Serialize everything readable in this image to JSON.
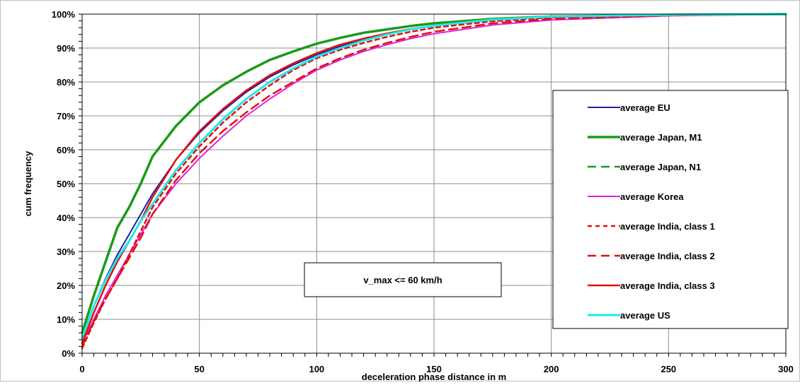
{
  "chart_data": {
    "type": "line",
    "title": "",
    "xlabel": "deceleration phase distance in m",
    "ylabel": "cum frequency",
    "xlim": [
      0,
      300
    ],
    "ylim": [
      0,
      100
    ],
    "x_ticks": [
      0,
      50,
      100,
      150,
      200,
      250,
      300
    ],
    "y_ticks": [
      "0%",
      "10%",
      "20%",
      "30%",
      "40%",
      "50%",
      "60%",
      "70%",
      "80%",
      "90%",
      "100%"
    ],
    "grid": true,
    "legend_position": "right",
    "annotation": "v_max <= 60 km/h",
    "series": [
      {
        "name": "average EU",
        "color": "#1f1fa0",
        "dash": "solid",
        "width": 2,
        "points": [
          [
            0,
            5
          ],
          [
            5,
            14
          ],
          [
            10,
            22
          ],
          [
            15,
            29
          ],
          [
            20,
            35
          ],
          [
            25,
            41
          ],
          [
            30,
            47
          ],
          [
            40,
            57
          ],
          [
            50,
            65
          ],
          [
            60,
            71.5
          ],
          [
            70,
            77
          ],
          [
            80,
            81.5
          ],
          [
            90,
            85
          ],
          [
            100,
            88
          ],
          [
            110,
            90.5
          ],
          [
            120,
            92.5
          ],
          [
            130,
            94
          ],
          [
            140,
            95.5
          ],
          [
            150,
            96.5
          ],
          [
            175,
            98.3
          ],
          [
            200,
            99.2
          ],
          [
            250,
            99.8
          ],
          [
            300,
            100
          ]
        ]
      },
      {
        "name": "average Japan, M1",
        "color": "#1a9a1a",
        "dash": "solid",
        "width": 3.5,
        "points": [
          [
            0,
            6
          ],
          [
            5,
            17
          ],
          [
            10,
            27
          ],
          [
            15,
            37
          ],
          [
            20,
            43
          ],
          [
            25,
            50
          ],
          [
            30,
            58
          ],
          [
            40,
            67
          ],
          [
            50,
            74
          ],
          [
            60,
            79
          ],
          [
            70,
            83
          ],
          [
            80,
            86.5
          ],
          [
            90,
            89
          ],
          [
            100,
            91.3
          ],
          [
            110,
            93
          ],
          [
            120,
            94.5
          ],
          [
            130,
            95.5
          ],
          [
            140,
            96.5
          ],
          [
            150,
            97.3
          ],
          [
            175,
            98.6
          ],
          [
            200,
            99.3
          ],
          [
            250,
            99.8
          ],
          [
            300,
            100
          ]
        ]
      },
      {
        "name": "average Japan, N1",
        "color": "#1a9a1a",
        "dash": "dashed",
        "width": 2.5,
        "points": [
          [
            0,
            6
          ],
          [
            5,
            17
          ],
          [
            10,
            27
          ],
          [
            15,
            37
          ],
          [
            20,
            43
          ],
          [
            25,
            50
          ],
          [
            30,
            58
          ],
          [
            40,
            67
          ],
          [
            50,
            74
          ],
          [
            60,
            79
          ],
          [
            70,
            83
          ],
          [
            80,
            86.5
          ],
          [
            90,
            89
          ],
          [
            100,
            91.3
          ],
          [
            110,
            93
          ],
          [
            120,
            94.5
          ],
          [
            130,
            95.5
          ],
          [
            140,
            96.5
          ],
          [
            150,
            97.3
          ],
          [
            175,
            98.6
          ],
          [
            200,
            99.3
          ],
          [
            250,
            99.8
          ],
          [
            300,
            100
          ]
        ]
      },
      {
        "name": "average Korea",
        "color": "#e020e0",
        "dash": "solid",
        "width": 2,
        "points": [
          [
            0,
            3
          ],
          [
            5,
            10
          ],
          [
            10,
            17
          ],
          [
            15,
            23
          ],
          [
            20,
            29
          ],
          [
            25,
            35
          ],
          [
            30,
            41
          ],
          [
            40,
            50
          ],
          [
            50,
            57.5
          ],
          [
            60,
            64
          ],
          [
            70,
            70
          ],
          [
            80,
            75
          ],
          [
            90,
            79.5
          ],
          [
            100,
            83.5
          ],
          [
            110,
            86.5
          ],
          [
            120,
            89
          ],
          [
            130,
            91
          ],
          [
            140,
            92.8
          ],
          [
            150,
            94.2
          ],
          [
            175,
            96.8
          ],
          [
            200,
            98.3
          ],
          [
            250,
            99.5
          ],
          [
            300,
            100
          ]
        ]
      },
      {
        "name": "average India, class 1",
        "color": "#e01010",
        "dash": "dotted",
        "width": 2.5,
        "points": [
          [
            0,
            1.5
          ],
          [
            5,
            9
          ],
          [
            10,
            16
          ],
          [
            15,
            22
          ],
          [
            20,
            29
          ],
          [
            25,
            36
          ],
          [
            30,
            43
          ],
          [
            40,
            53
          ],
          [
            50,
            61
          ],
          [
            60,
            68
          ],
          [
            70,
            74
          ],
          [
            80,
            79
          ],
          [
            90,
            83.5
          ],
          [
            100,
            87
          ],
          [
            110,
            89.5
          ],
          [
            120,
            91.5
          ],
          [
            130,
            93.3
          ],
          [
            140,
            94.8
          ],
          [
            150,
            96
          ],
          [
            175,
            97.9
          ],
          [
            200,
            99
          ],
          [
            250,
            99.7
          ],
          [
            300,
            100
          ]
        ]
      },
      {
        "name": "average India, class 2",
        "color": "#e01010",
        "dash": "dashed",
        "width": 2.5,
        "points": [
          [
            0,
            2
          ],
          [
            5,
            9.5
          ],
          [
            10,
            16
          ],
          [
            15,
            22
          ],
          [
            20,
            28
          ],
          [
            25,
            34
          ],
          [
            30,
            41
          ],
          [
            40,
            51
          ],
          [
            50,
            59
          ],
          [
            60,
            65.5
          ],
          [
            70,
            71
          ],
          [
            80,
            76
          ],
          [
            90,
            80
          ],
          [
            100,
            84
          ],
          [
            110,
            87
          ],
          [
            120,
            89.5
          ],
          [
            130,
            91.5
          ],
          [
            140,
            93.3
          ],
          [
            150,
            94.8
          ],
          [
            175,
            97.3
          ],
          [
            200,
            98.6
          ],
          [
            250,
            99.6
          ],
          [
            300,
            100
          ]
        ]
      },
      {
        "name": "average India, class 3",
        "color": "#e01010",
        "dash": "solid",
        "width": 2.5,
        "points": [
          [
            0,
            3
          ],
          [
            5,
            12
          ],
          [
            10,
            20
          ],
          [
            15,
            27
          ],
          [
            20,
            33
          ],
          [
            25,
            39
          ],
          [
            30,
            46
          ],
          [
            40,
            57
          ],
          [
            50,
            65.5
          ],
          [
            60,
            72
          ],
          [
            70,
            77.5
          ],
          [
            80,
            82
          ],
          [
            90,
            85.5
          ],
          [
            100,
            88.5
          ],
          [
            110,
            91
          ],
          [
            120,
            92.8
          ],
          [
            130,
            94.3
          ],
          [
            140,
            95.6
          ],
          [
            150,
            96.6
          ],
          [
            175,
            98.3
          ],
          [
            200,
            99.2
          ],
          [
            250,
            99.8
          ],
          [
            300,
            100
          ]
        ]
      },
      {
        "name": "average US",
        "color": "#20e8e8",
        "dash": "solid",
        "width": 3,
        "points": [
          [
            0,
            4.5
          ],
          [
            5,
            14
          ],
          [
            10,
            21.5
          ],
          [
            15,
            28
          ],
          [
            20,
            33
          ],
          [
            25,
            39
          ],
          [
            30,
            44
          ],
          [
            40,
            54
          ],
          [
            50,
            62
          ],
          [
            60,
            69
          ],
          [
            70,
            75
          ],
          [
            80,
            80
          ],
          [
            90,
            84
          ],
          [
            100,
            87.5
          ],
          [
            110,
            90
          ],
          [
            120,
            92.2
          ],
          [
            130,
            94
          ],
          [
            140,
            95.5
          ],
          [
            150,
            96.6
          ],
          [
            175,
            98.4
          ],
          [
            200,
            99.3
          ],
          [
            250,
            99.8
          ],
          [
            300,
            100
          ]
        ]
      }
    ]
  }
}
